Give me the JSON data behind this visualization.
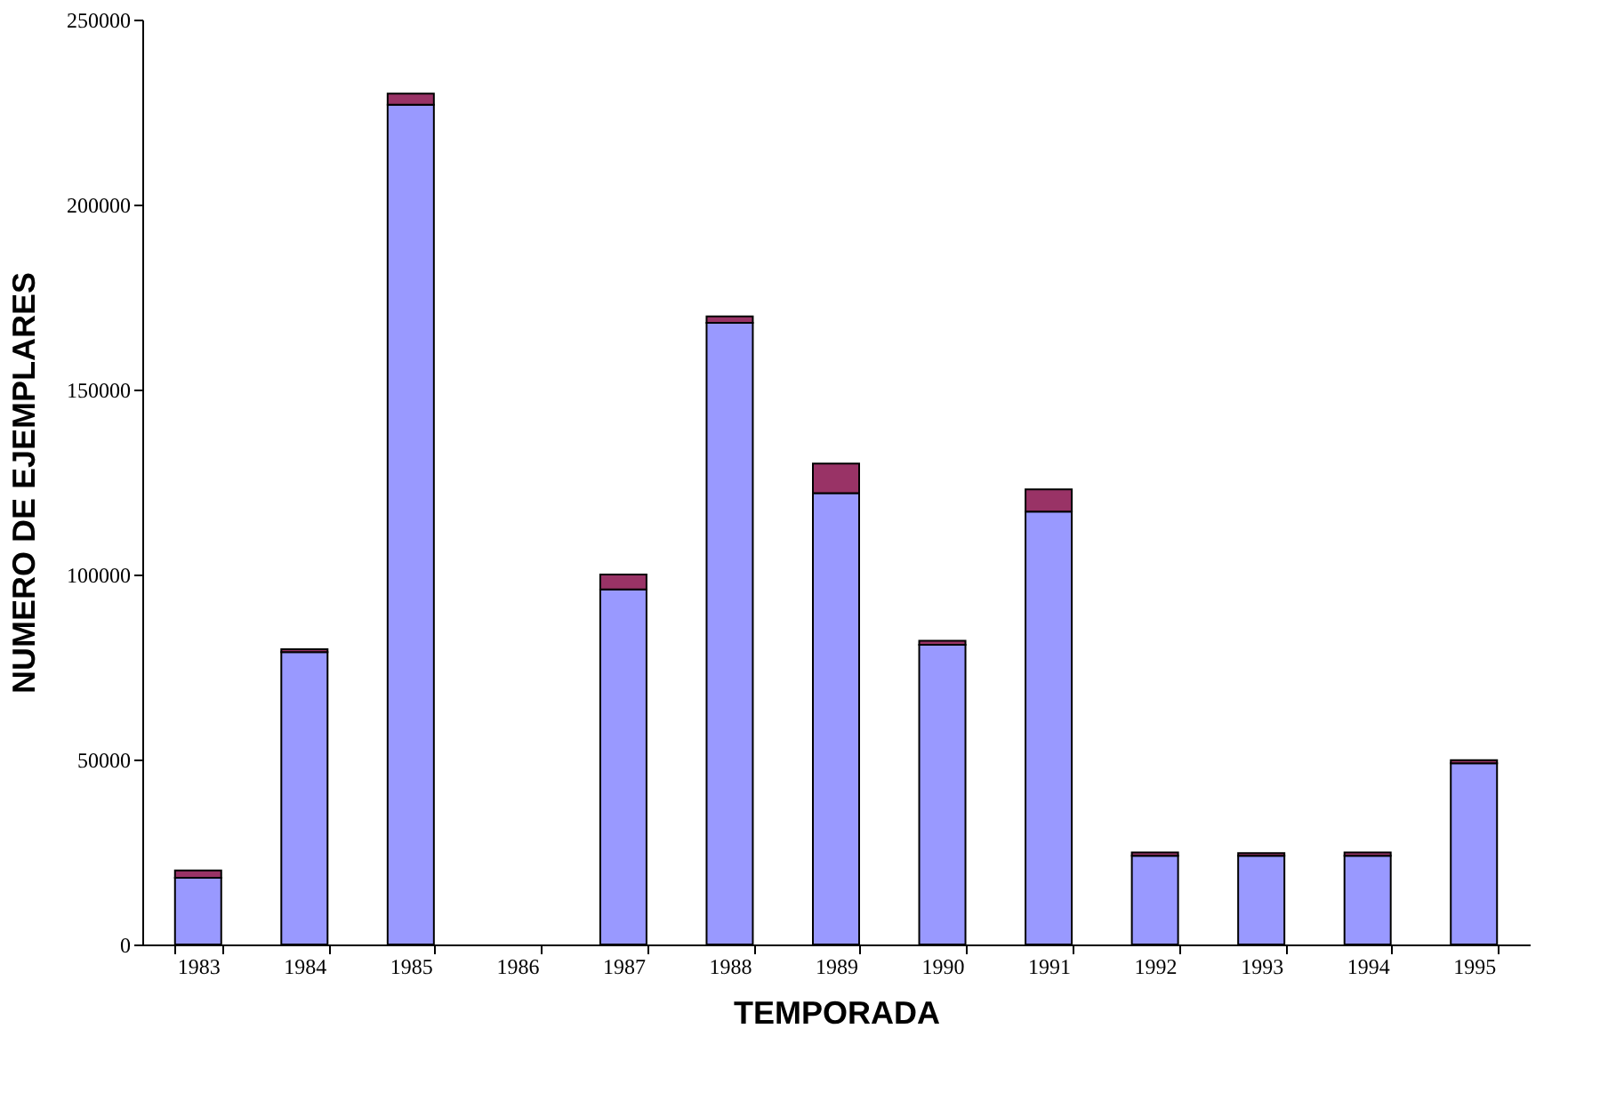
{
  "chart_data": {
    "type": "bar",
    "stacked": true,
    "xlabel": "TEMPORADA",
    "ylabel": "NUMERO DE EJEMPLARES",
    "categories": [
      "1983",
      "1984",
      "1985",
      "1986",
      "1987",
      "1988",
      "1989",
      "1990",
      "1991",
      "1992",
      "1993",
      "1994",
      "1995"
    ],
    "series": [
      {
        "color": "#9999ff",
        "values": [
          18000,
          79000,
          227000,
          null,
          96000,
          168000,
          122000,
          81000,
          117000,
          24000,
          24000,
          24000,
          49000
        ]
      },
      {
        "color": "#993366",
        "values": [
          2000,
          800,
          3000,
          null,
          4000,
          1800,
          8000,
          1100,
          6000,
          900,
          700,
          900,
          800
        ]
      }
    ],
    "ylim": [
      0,
      250000
    ],
    "yticks": [
      0,
      50000,
      100000,
      150000,
      200000,
      250000
    ],
    "grid": false,
    "legend": false
  }
}
